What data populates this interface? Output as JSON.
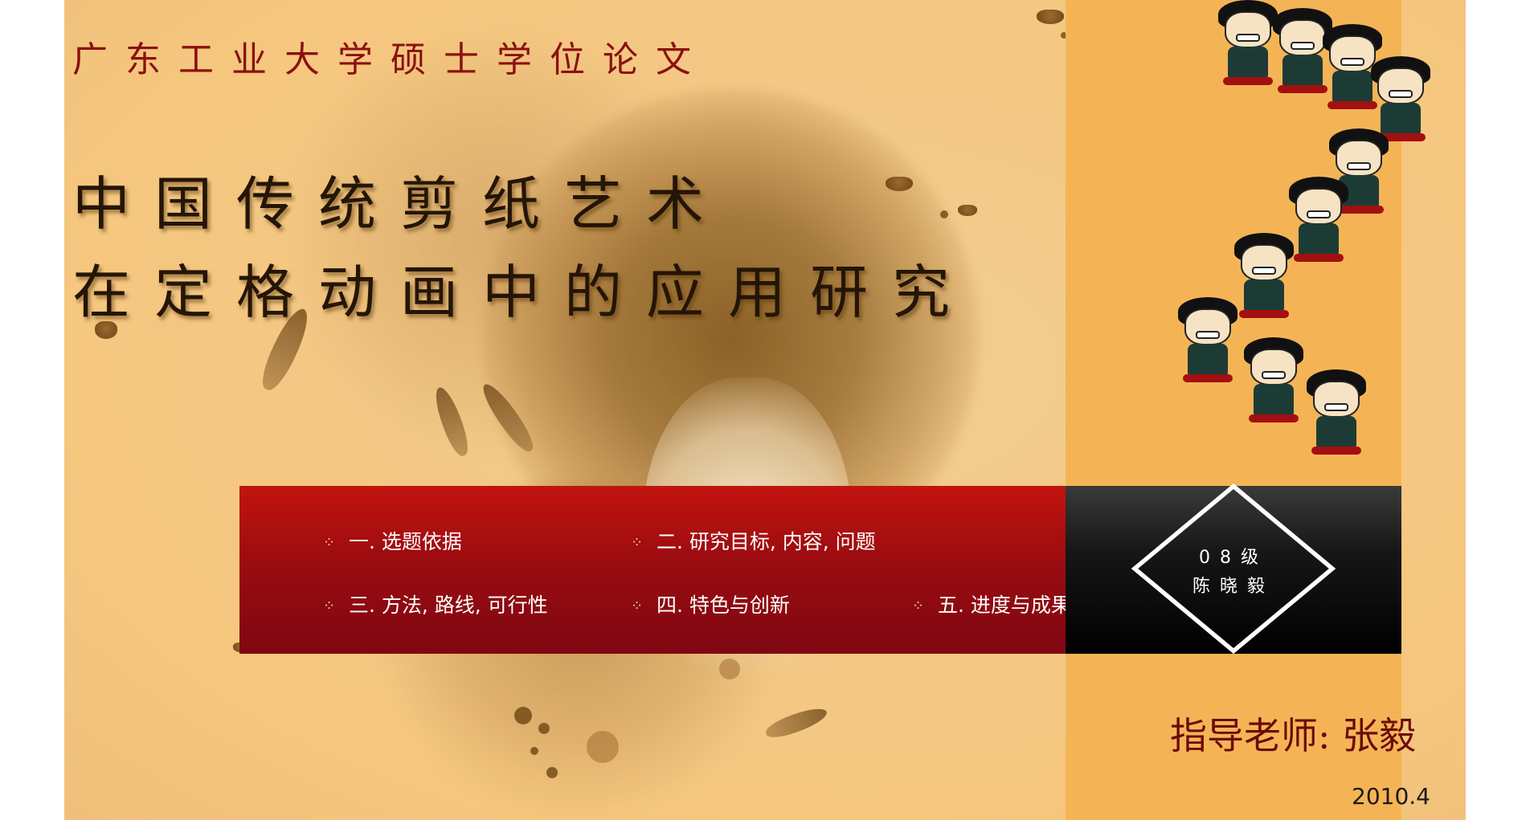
{
  "header": {
    "university": "广东工业大学硕士学位论文"
  },
  "title": {
    "line1": "中国传统剪纸艺术",
    "line2": "在定格动画中的应用研究"
  },
  "menu": {
    "items": [
      {
        "label": "一. 选题依据",
        "icon": "diamond-dots-icon"
      },
      {
        "label": "二. 研究目标, 内容, 问题",
        "icon": "diamond-dots-icon"
      },
      {
        "label": "三. 方法, 路线, 可行性",
        "icon": "diamond-dots-icon"
      },
      {
        "label": "四. 特色与创新",
        "icon": "diamond-dots-icon"
      },
      {
        "label": "五. 进度与成果",
        "icon": "diamond-dots-icon"
      }
    ]
  },
  "student": {
    "grade": "08级",
    "name": "陈晓毅"
  },
  "advisor": {
    "text": "指导老师: 张毅"
  },
  "date": "2010.4",
  "colors": {
    "background": "#f3c886",
    "right_panel": "#f4b455",
    "menu_band": "#a30d10",
    "university_text": "#8b1010",
    "advisor_text": "#6b0b0b"
  }
}
